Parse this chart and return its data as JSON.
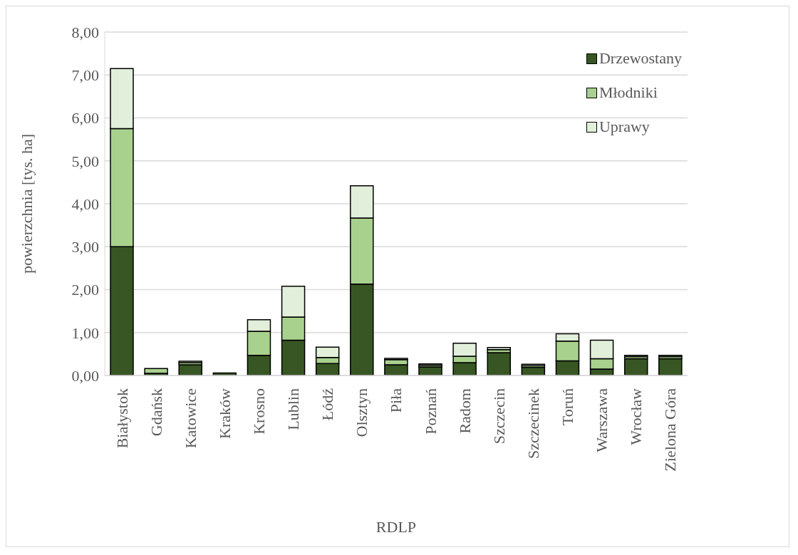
{
  "chart_data": {
    "type": "bar",
    "stacked": true,
    "xlabel": "RDLP",
    "ylabel": "powierzchnia [tys. ha]",
    "categories": [
      "Białystok",
      "Gdańsk",
      "Katowice",
      "Kraków",
      "Krosno",
      "Lublin",
      "Łódź",
      "Olsztyn",
      "Piła",
      "Poznań",
      "Radom",
      "Szczecin",
      "Szczecinek",
      "Toruń",
      "Warszawa",
      "Wrocław",
      "Zielona Góra"
    ],
    "series": [
      {
        "name": "Drzewostany",
        "color": "#375623",
        "values": [
          3.0,
          0.05,
          0.25,
          0.06,
          0.47,
          0.82,
          0.28,
          2.13,
          0.25,
          0.2,
          0.3,
          0.53,
          0.19,
          0.34,
          0.15,
          0.39,
          0.39
        ]
      },
      {
        "name": "Młodniki",
        "color": "#a9d18e",
        "values": [
          2.75,
          0.11,
          0.05,
          null,
          0.56,
          0.54,
          0.14,
          1.54,
          0.12,
          0.04,
          0.15,
          0.07,
          0.04,
          0.46,
          0.24,
          0.05,
          0.05
        ]
      },
      {
        "name": "Uprawy",
        "color": "#e2efda",
        "values": [
          1.4,
          null,
          0.03,
          null,
          0.27,
          0.72,
          0.24,
          0.75,
          0.03,
          0.03,
          0.3,
          0.05,
          0.03,
          0.17,
          0.43,
          0.03,
          0.03
        ]
      }
    ],
    "ylim": [
      0,
      8
    ],
    "yticks": [
      {
        "value": 0,
        "label": "0,00"
      },
      {
        "value": 1,
        "label": "1,00"
      },
      {
        "value": 2,
        "label": "2,00"
      },
      {
        "value": 3,
        "label": "3,00"
      },
      {
        "value": 4,
        "label": "4,00"
      },
      {
        "value": 5,
        "label": "5,00"
      },
      {
        "value": 6,
        "label": "6,00"
      },
      {
        "value": 7,
        "label": "7,00"
      },
      {
        "value": 8,
        "label": "8,00"
      }
    ],
    "grid": "y",
    "legend": "top right"
  }
}
